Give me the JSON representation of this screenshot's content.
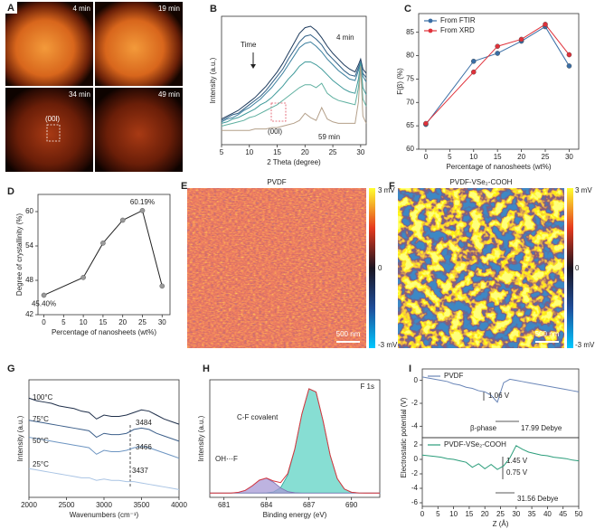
{
  "panel_labels": [
    "A",
    "B",
    "C",
    "D",
    "E",
    "F",
    "G",
    "H",
    "I"
  ],
  "images": {
    "times": [
      "4 min",
      "19 min",
      "34 min",
      "49 min"
    ],
    "annotation": "(00l)"
  },
  "maps": [
    {
      "title": "PVDF",
      "colorbar": [
        "3 mV",
        "0",
        "-3 mV"
      ],
      "scale_bar": "500 nm"
    },
    {
      "title": "PVDF-VSe₂-COOH",
      "colorbar": [
        "3 mV",
        "0",
        "-3 mV"
      ],
      "scale_bar": "500 nm"
    }
  ],
  "chart_data": [
    {
      "type": "line",
      "x_label": "2 Theta (degree)",
      "y_label": "Intensity (a.u.)",
      "xlim": [
        5,
        31
      ],
      "ylim": [
        1,
        10
      ],
      "xticks": [
        5,
        10,
        15,
        20,
        25,
        30
      ],
      "annotations": [
        "4 min",
        "59 min",
        "Time",
        "(00l)"
      ],
      "x": [
        5,
        6,
        7,
        8,
        9,
        10,
        11,
        12,
        13,
        14,
        15,
        16,
        17,
        18,
        19,
        20,
        21,
        22,
        23,
        24,
        25,
        26,
        27,
        28,
        29,
        29.6,
        30,
        30.4,
        31
      ],
      "series": [
        {
          "color": "#1d3a5c",
          "values": [
            2.8,
            3.0,
            3.2,
            3.4,
            3.7,
            4.0,
            4.3,
            4.7,
            5.1,
            5.6,
            6.1,
            6.7,
            7.4,
            8.1,
            8.8,
            9.2,
            9.3,
            9.0,
            8.5,
            7.9,
            7.4,
            7.0,
            6.6,
            6.3,
            6.1,
            6.6,
            7.0,
            6.3,
            6.0
          ]
        },
        {
          "color": "#2f5f86",
          "values": [
            2.7,
            2.9,
            3.1,
            3.2,
            3.5,
            3.8,
            4.1,
            4.4,
            4.8,
            5.3,
            5.8,
            6.3,
            7.0,
            7.6,
            8.2,
            8.6,
            8.7,
            8.4,
            8.0,
            7.4,
            7.0,
            6.6,
            6.2,
            5.9,
            5.8,
            6.4,
            6.8,
            6.0,
            5.7
          ]
        },
        {
          "color": "#3a7f9e",
          "values": [
            2.6,
            2.8,
            2.9,
            3.1,
            3.4,
            3.6,
            3.9,
            4.2,
            4.6,
            5.0,
            5.5,
            6.0,
            6.6,
            7.2,
            7.8,
            8.1,
            8.2,
            7.9,
            7.5,
            7.0,
            6.6,
            6.2,
            5.9,
            5.6,
            5.5,
            6.2,
            6.8,
            5.8,
            5.4
          ]
        },
        {
          "color": "#3f9a9a",
          "values": [
            2.5,
            2.6,
            2.8,
            2.9,
            3.1,
            3.3,
            3.5,
            3.8,
            4.0,
            4.3,
            4.7,
            5.1,
            5.6,
            6.0,
            6.5,
            6.8,
            6.8,
            6.6,
            6.3,
            5.9,
            5.5,
            5.2,
            4.9,
            4.7,
            4.6,
            5.6,
            6.7,
            5.0,
            4.5
          ]
        },
        {
          "color": "#5fb0a0",
          "values": [
            2.3,
            2.4,
            2.5,
            2.6,
            2.7,
            2.9,
            3.0,
            3.2,
            3.4,
            3.6,
            3.8,
            4.1,
            4.4,
            4.7,
            5.0,
            5.2,
            5.2,
            5.0,
            5.3,
            4.6,
            4.3,
            4.1,
            4.0,
            3.9,
            3.8,
            5.0,
            6.6,
            4.2,
            3.7
          ]
        },
        {
          "color": "#b4a08a",
          "values": [
            2.0,
            2.0,
            2.0,
            2.0,
            2.0,
            2.0,
            2.1,
            2.1,
            2.1,
            2.2,
            2.2,
            2.3,
            2.4,
            2.5,
            2.7,
            3.2,
            2.9,
            2.7,
            3.6,
            2.8,
            2.6,
            2.5,
            2.5,
            2.5,
            2.5,
            4.0,
            6.5,
            3.0,
            2.5
          ]
        }
      ]
    },
    {
      "type": "line",
      "x_label": "Percentage of nanosheets (wt%)",
      "y_label": "F(β) (%)",
      "xlim": [
        -1.5,
        32
      ],
      "ylim": [
        60,
        89
      ],
      "xticks": [
        0,
        5,
        10,
        15,
        20,
        25,
        30
      ],
      "yticks": [
        60,
        65,
        70,
        75,
        80,
        85
      ],
      "markers": true,
      "legend": "upper left",
      "x": [
        0,
        10,
        15,
        20,
        25,
        30
      ],
      "series": [
        {
          "name": "From FTIR",
          "color": "#3a6ea5",
          "values": [
            65.3,
            78.8,
            80.5,
            83.1,
            86.2,
            77.8
          ]
        },
        {
          "name": "From XRD",
          "color": "#e0313a",
          "values": [
            65.5,
            76.5,
            82.0,
            83.5,
            86.7,
            80.2
          ]
        }
      ]
    },
    {
      "type": "line",
      "x_label": "Percentage of nanosheets (wt%)",
      "y_label": "Degree of crystallinity (%)",
      "xlim": [
        -1.5,
        32
      ],
      "ylim": [
        42,
        63
      ],
      "xticks": [
        0,
        5,
        10,
        15,
        20,
        25,
        30
      ],
      "yticks": [
        42,
        48,
        54,
        60
      ],
      "markers": true,
      "x": [
        0,
        10,
        15,
        20,
        25,
        30
      ],
      "series": [
        {
          "color": "#222222",
          "marker_color": "#9a9a9a",
          "values": [
            45.4,
            48.5,
            54.5,
            58.5,
            60.19,
            47.0
          ],
          "value_labels": [
            "45.40%",
            null,
            null,
            null,
            "60.19%",
            null
          ]
        }
      ]
    },
    {
      "type": "line",
      "x_label": "Wavenumbers (cm⁻¹)",
      "y_label": "Intensity (a.u.)",
      "xlim": [
        2000,
        4000
      ],
      "ylim": [
        1,
        10
      ],
      "xticks": [
        2000,
        2500,
        3000,
        3500,
        4000
      ],
      "annotations": [
        "3484",
        "3466",
        "3437"
      ],
      "series_labels": [
        "100°C",
        "75°C",
        "50°C",
        "25°C"
      ],
      "x": [
        2000,
        2100,
        2200,
        2300,
        2400,
        2500,
        2600,
        2700,
        2800,
        2900,
        3000,
        3100,
        3200,
        3300,
        3400,
        3500,
        3600,
        3700,
        3800,
        3900,
        4000
      ],
      "series": [
        {
          "color": "#1f2f4a",
          "values": [
            8.6,
            8.4,
            8.3,
            8.2,
            8.0,
            7.9,
            7.8,
            7.6,
            7.5,
            7.0,
            7.3,
            7.2,
            7.2,
            7.3,
            7.5,
            7.7,
            7.6,
            7.3,
            7.0,
            6.8,
            6.6
          ]
        },
        {
          "color": "#3c5f8a",
          "values": [
            6.9,
            6.8,
            6.7,
            6.6,
            6.5,
            6.4,
            6.3,
            6.2,
            6.1,
            5.6,
            5.9,
            5.8,
            5.8,
            5.9,
            6.2,
            6.3,
            6.2,
            5.9,
            5.7,
            5.5,
            5.3
          ]
        },
        {
          "color": "#6d95c2",
          "values": [
            5.6,
            5.5,
            5.4,
            5.3,
            5.2,
            5.1,
            5.0,
            4.9,
            4.8,
            4.3,
            4.6,
            4.5,
            4.5,
            4.6,
            4.8,
            4.9,
            4.8,
            4.6,
            4.4,
            4.2,
            4.0
          ]
        },
        {
          "color": "#a9c4e4",
          "values": [
            3.2,
            3.1,
            3.0,
            2.9,
            2.8,
            2.7,
            2.6,
            2.5,
            2.5,
            2.3,
            2.4,
            2.3,
            2.3,
            2.2,
            2.2,
            2.1,
            2.0,
            1.9,
            1.8,
            1.7,
            1.6
          ]
        }
      ]
    },
    {
      "type": "line",
      "x_label": "Binding energy (eV)",
      "y_label": "Intensity (a.u.)",
      "xlim": [
        680,
        692
      ],
      "ylim": [
        0,
        11
      ],
      "xticks": [
        681,
        684,
        687,
        690
      ],
      "annotations": [
        "F 1s",
        "C-F covalent",
        "OH⋯F"
      ],
      "x": [
        680,
        680.5,
        681,
        681.5,
        682,
        682.5,
        683,
        683.5,
        684,
        684.5,
        685,
        685.5,
        686,
        686.5,
        687,
        687.5,
        688,
        688.5,
        689,
        689.5,
        690,
        690.5,
        691,
        691.5,
        692
      ],
      "series": [
        {
          "color": "#2aa198",
          "fill": "#5fd3c4",
          "values": [
            0.4,
            0.4,
            0.4,
            0.4,
            0.4,
            0.4,
            0.4,
            0.4,
            0.42,
            0.51,
            0.9,
            2.08,
            4.5,
            7.8,
            10.16,
            9.86,
            7.14,
            3.93,
            1.75,
            0.78,
            0.48,
            0.41,
            0.4,
            0.4,
            0.4
          ]
        },
        {
          "color": "#7b6fb0",
          "fill": "#a79ad6",
          "values": [
            0.4,
            0.4,
            0.4,
            0.4,
            0.46,
            0.65,
            1.08,
            1.61,
            1.79,
            1.42,
            0.88,
            0.54,
            0.43,
            0.4,
            0.4,
            0.4,
            0.4,
            0.4,
            0.4,
            0.4,
            0.4,
            0.4,
            0.4,
            0.4,
            0.4
          ]
        },
        {
          "color": "#d9363e",
          "values": [
            0.4,
            0.4,
            0.4,
            0.4,
            0.46,
            0.65,
            1.08,
            1.61,
            1.81,
            1.53,
            1.38,
            2.22,
            4.53,
            7.8,
            10.16,
            9.86,
            7.14,
            3.93,
            1.75,
            0.78,
            0.48,
            0.41,
            0.4,
            0.4,
            0.4
          ]
        }
      ]
    },
    {
      "type": "line",
      "y_label": "Electrostatic potential (V)",
      "xlim": [
        0,
        50
      ],
      "ylim": [
        -5,
        1
      ],
      "yticks": [
        0,
        -2,
        -4
      ],
      "legend": "upper left",
      "annotations": [
        "1.06 V",
        "β-phase",
        "17.99 Debye"
      ],
      "x": [
        0,
        2,
        4,
        6,
        8,
        10,
        12,
        14,
        16,
        18,
        20,
        22,
        24,
        26,
        28,
        30,
        32,
        34,
        36,
        38,
        40,
        42,
        44,
        46,
        48,
        50
      ],
      "series": [
        {
          "name": "PVDF",
          "color": "#6a86b8",
          "values": [
            0.3,
            0.2,
            0.1,
            0,
            -0.1,
            -0.3,
            -0.4,
            -0.6,
            -0.7,
            -0.9,
            -1.0,
            -1.3,
            -1.9,
            -0.2,
            0.1,
            0,
            -0.1,
            -0.2,
            -0.3,
            -0.4,
            -0.5,
            -0.6,
            -0.7,
            -0.8,
            -0.9,
            -1.0
          ]
        }
      ]
    },
    {
      "type": "line",
      "x_label": "Z (Å)",
      "xlim": [
        0,
        50
      ],
      "ylim": [
        -6.5,
        3
      ],
      "xticks": [
        0,
        5,
        10,
        15,
        20,
        25,
        30,
        35,
        40,
        45,
        50
      ],
      "yticks": [
        2,
        0,
        -2,
        -4,
        -6
      ],
      "legend": "upper left",
      "annotations": [
        "1.45 V",
        "0.75 V",
        "31.56 Debye"
      ],
      "x": [
        0,
        2,
        4,
        6,
        8,
        10,
        12,
        14,
        16,
        18,
        20,
        22,
        24,
        26,
        28,
        30,
        32,
        34,
        36,
        38,
        40,
        42,
        44,
        46,
        48,
        50
      ],
      "series": [
        {
          "name": "PVDF-VSe₂-COOH",
          "color": "#2a9d7a",
          "values": [
            0.6,
            0.5,
            0.4,
            0.3,
            0.1,
            0,
            -0.2,
            -0.4,
            -1.1,
            -0.6,
            -1.3,
            -0.7,
            -1.4,
            -0.9,
            0.2,
            1.9,
            1.4,
            1.0,
            0.8,
            0.6,
            0.5,
            0.3,
            0.2,
            0.1,
            -0.1,
            -0.2
          ]
        }
      ]
    }
  ]
}
